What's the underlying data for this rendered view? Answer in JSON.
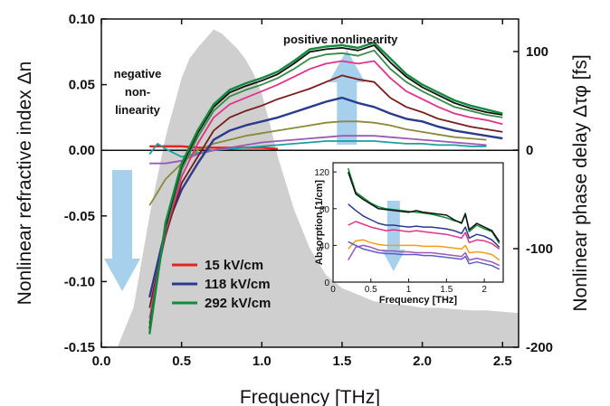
{
  "chart_data": [
    {
      "type": "line",
      "title": "",
      "xlabel": "Frequency [THz]",
      "ylabel": "Nonlinear refractive index Δn",
      "y2label": "Nonlinear phase delay Δτφ  [fs]",
      "xlim": [
        0.0,
        2.6
      ],
      "ylim": [
        -0.15,
        0.1
      ],
      "y2lim": [
        -200,
        133
      ],
      "xticks": [
        "0.0",
        "0.5",
        "1.0",
        "1.5",
        "2.0",
        "2.5"
      ],
      "yticks": [
        "-0.15",
        "-0.10",
        "-0.05",
        "0.00",
        "0.05",
        "0.10"
      ],
      "y2ticks": [
        "-200",
        "-100",
        "0",
        "100"
      ],
      "grid": false,
      "legend": {
        "position": "bottom-left",
        "entries": [
          {
            "label": "15 kV/cm",
            "color": "#e52321"
          },
          {
            "label": "118 kV/cm",
            "color": "#2b3a8c"
          },
          {
            "label": "292 kV/cm",
            "color": "#148a3c"
          }
        ]
      },
      "annotations": {
        "positive": "positive nonlinearity",
        "negative": [
          "negative",
          "non-",
          "linearity"
        ]
      },
      "arrow_color": "#9ccbea",
      "spectrum_fill": "#cfcfcf",
      "spectrum": {
        "x": [
          0.0,
          0.1,
          0.2,
          0.3,
          0.4,
          0.5,
          0.55,
          0.6,
          0.65,
          0.7,
          0.75,
          0.8,
          0.85,
          0.9,
          0.95,
          1.0,
          1.05,
          1.1,
          1.2,
          1.3,
          1.4,
          1.5,
          1.6,
          1.7,
          1.8,
          1.9,
          2.0,
          2.1,
          2.2,
          2.3,
          2.4,
          2.5,
          2.6
        ],
        "y": [
          -0.25,
          -0.21,
          -0.12,
          -0.05,
          0.01,
          0.055,
          0.07,
          0.078,
          0.085,
          0.092,
          0.089,
          0.083,
          0.077,
          0.069,
          0.058,
          0.043,
          0.02,
          -0.005,
          -0.045,
          -0.075,
          -0.095,
          -0.105,
          -0.11,
          -0.115,
          -0.117,
          -0.118,
          -0.12,
          -0.12,
          -0.121,
          -0.122,
          -0.122,
          -0.123,
          -0.124
        ]
      },
      "series": [
        {
          "color": "#e52321",
          "x": [
            0.3,
            0.4,
            0.5,
            0.6,
            0.7,
            0.8,
            0.9,
            1.0,
            1.1
          ],
          "y": [
            0.003,
            0.003,
            0.003,
            0.002,
            0.002,
            0.002,
            0.002,
            0.002,
            0.001
          ]
        },
        {
          "color": "#1a9fa0",
          "x": [
            0.3,
            0.35,
            0.4,
            0.5,
            0.6,
            0.7,
            0.8,
            0.9,
            1.0,
            1.1,
            1.2,
            1.3,
            1.4,
            1.5,
            1.6,
            1.7,
            1.8,
            1.9,
            2.0,
            2.1,
            2.2,
            2.3,
            2.4
          ],
          "y": [
            -0.003,
            0.005,
            0.001,
            -0.005,
            -0.002,
            0.0,
            0.001,
            0.002,
            0.003,
            0.004,
            0.005,
            0.006,
            0.007,
            0.007,
            0.007,
            0.007,
            0.006,
            0.005,
            0.005,
            0.004,
            0.004,
            0.003,
            0.003
          ]
        },
        {
          "color": "#9b59b6",
          "x": [
            0.3,
            0.4,
            0.5,
            0.6,
            0.7,
            0.8,
            0.9,
            1.0,
            1.1,
            1.2,
            1.3,
            1.4,
            1.5,
            1.6,
            1.7,
            1.8,
            1.9,
            2.0,
            2.1,
            2.2,
            2.3,
            2.4
          ],
          "y": [
            -0.01,
            -0.01,
            -0.008,
            -0.003,
            0.0,
            0.002,
            0.004,
            0.006,
            0.007,
            0.008,
            0.009,
            0.01,
            0.011,
            0.011,
            0.011,
            0.01,
            0.009,
            0.008,
            0.007,
            0.006,
            0.005,
            0.004
          ]
        },
        {
          "color": "#8a8a3a",
          "x": [
            0.3,
            0.4,
            0.5,
            0.6,
            0.7,
            0.8,
            0.9,
            1.0,
            1.1,
            1.2,
            1.3,
            1.4,
            1.5,
            1.6,
            1.7,
            1.8,
            1.9,
            2.0,
            2.1,
            2.2,
            2.3,
            2.4
          ],
          "y": [
            -0.042,
            -0.022,
            -0.01,
            0.0,
            0.005,
            0.008,
            0.011,
            0.013,
            0.015,
            0.017,
            0.019,
            0.021,
            0.022,
            0.022,
            0.021,
            0.019,
            0.016,
            0.014,
            0.012,
            0.01,
            0.009,
            0.008
          ]
        },
        {
          "color": "#2b3a8c",
          "x": [
            0.3,
            0.4,
            0.5,
            0.6,
            0.7,
            0.8,
            0.9,
            1.0,
            1.1,
            1.2,
            1.3,
            1.4,
            1.5,
            1.6,
            1.7,
            1.8,
            1.9,
            2.0,
            2.1,
            2.2,
            2.3,
            2.4,
            2.5
          ],
          "y": [
            -0.112,
            -0.06,
            -0.03,
            -0.01,
            0.008,
            0.015,
            0.019,
            0.022,
            0.025,
            0.029,
            0.033,
            0.037,
            0.04,
            0.036,
            0.033,
            0.028,
            0.024,
            0.022,
            0.018,
            0.015,
            0.013,
            0.011,
            0.009
          ]
        },
        {
          "color": "#7a1c1c",
          "x": [
            0.3,
            0.4,
            0.5,
            0.6,
            0.7,
            0.8,
            0.9,
            1.0,
            1.1,
            1.2,
            1.3,
            1.4,
            1.5,
            1.6,
            1.7,
            1.8,
            1.9,
            2.0,
            2.1,
            2.2,
            2.3,
            2.4,
            2.5
          ],
          "y": [
            -0.12,
            -0.065,
            -0.025,
            -0.005,
            0.015,
            0.025,
            0.03,
            0.034,
            0.039,
            0.043,
            0.047,
            0.052,
            0.057,
            0.054,
            0.052,
            0.04,
            0.033,
            0.029,
            0.024,
            0.021,
            0.018,
            0.016,
            0.014
          ]
        },
        {
          "color": "#e0338a",
          "x": [
            0.3,
            0.4,
            0.5,
            0.6,
            0.7,
            0.8,
            0.9,
            1.0,
            1.1,
            1.2,
            1.3,
            1.4,
            1.5,
            1.6,
            1.7,
            1.8,
            1.9,
            2.0,
            2.1,
            2.2,
            2.3,
            2.4,
            2.5
          ],
          "y": [
            -0.128,
            -0.062,
            -0.02,
            0.005,
            0.025,
            0.035,
            0.04,
            0.045,
            0.05,
            0.056,
            0.062,
            0.066,
            0.068,
            0.066,
            0.068,
            0.055,
            0.045,
            0.039,
            0.033,
            0.028,
            0.025,
            0.023,
            0.02
          ]
        },
        {
          "color": "#3a8a48",
          "x": [
            0.3,
            0.4,
            0.5,
            0.6,
            0.7,
            0.8,
            0.9,
            1.0,
            1.1,
            1.2,
            1.3,
            1.4,
            1.5,
            1.6,
            1.7,
            1.8,
            1.9,
            2.0,
            2.1,
            2.2,
            2.3,
            2.4,
            2.5
          ],
          "y": [
            -0.132,
            -0.06,
            -0.015,
            0.01,
            0.03,
            0.041,
            0.046,
            0.05,
            0.055,
            0.062,
            0.07,
            0.073,
            0.074,
            0.072,
            0.076,
            0.062,
            0.052,
            0.045,
            0.039,
            0.033,
            0.03,
            0.027,
            0.025
          ]
        },
        {
          "color": "#111111",
          "x": [
            0.3,
            0.4,
            0.5,
            0.6,
            0.7,
            0.8,
            0.9,
            1.0,
            1.1,
            1.2,
            1.3,
            1.4,
            1.5,
            1.6,
            1.7,
            1.8,
            1.9,
            2.0,
            2.1,
            2.2,
            2.3,
            2.4,
            2.5
          ],
          "y": [
            -0.136,
            -0.058,
            -0.012,
            0.013,
            0.033,
            0.044,
            0.049,
            0.053,
            0.058,
            0.066,
            0.075,
            0.077,
            0.078,
            0.076,
            0.08,
            0.067,
            0.056,
            0.048,
            0.042,
            0.036,
            0.032,
            0.029,
            0.027
          ]
        },
        {
          "color": "#148a3c",
          "x": [
            0.3,
            0.4,
            0.5,
            0.6,
            0.7,
            0.8,
            0.9,
            1.0,
            1.1,
            1.2,
            1.3,
            1.4,
            1.5,
            1.6,
            1.7,
            1.8,
            1.9,
            2.0,
            2.1,
            2.2,
            2.3,
            2.4,
            2.5
          ],
          "y": [
            -0.14,
            -0.055,
            -0.01,
            0.015,
            0.035,
            0.046,
            0.051,
            0.055,
            0.06,
            0.068,
            0.077,
            0.079,
            0.08,
            0.078,
            0.082,
            0.07,
            0.058,
            0.05,
            0.044,
            0.038,
            0.034,
            0.031,
            0.028
          ]
        }
      ]
    },
    {
      "type": "line",
      "title": "",
      "xlabel": "Frequency [THz]",
      "ylabel": "Absorption [1/cm]",
      "xlim": [
        0.0,
        2.25
      ],
      "ylim": [
        0,
        130
      ],
      "xticks": [
        "0",
        "0.5",
        "1",
        "1.5",
        "2"
      ],
      "yticks": [
        "0",
        "40",
        "80",
        "120"
      ],
      "series": [
        {
          "color": "#148a3c",
          "x": [
            0.2,
            0.3,
            0.4,
            0.5,
            0.6,
            0.7,
            0.8,
            0.9,
            1.0,
            1.1,
            1.2,
            1.3,
            1.4,
            1.5,
            1.6,
            1.7,
            1.75,
            1.8,
            1.9,
            2.0,
            2.1,
            2.2
          ],
          "y": [
            124,
            98,
            92,
            86,
            82,
            80,
            79,
            78,
            77,
            76,
            75,
            74,
            72,
            70,
            67,
            65,
            75,
            55,
            62,
            58,
            55,
            42
          ]
        },
        {
          "color": "#111111",
          "x": [
            0.2,
            0.3,
            0.4,
            0.5,
            0.6,
            0.7,
            0.8,
            0.9,
            1.0,
            1.1,
            1.2,
            1.3,
            1.4,
            1.5,
            1.6,
            1.7,
            1.75,
            1.8,
            1.9,
            2.0,
            2.1,
            2.2
          ],
          "y": [
            120,
            96,
            90,
            85,
            80,
            79,
            78,
            77,
            76,
            78,
            76,
            75,
            74,
            73,
            68,
            64,
            74,
            57,
            64,
            60,
            56,
            44
          ]
        },
        {
          "color": "#2b3a8c",
          "x": [
            0.2,
            0.3,
            0.4,
            0.5,
            0.6,
            0.7,
            0.8,
            0.9,
            1.0,
            1.1,
            1.2,
            1.3,
            1.4,
            1.5,
            1.6,
            1.7,
            1.75,
            1.8,
            1.9,
            2.0,
            2.1,
            2.2
          ],
          "y": [
            85,
            78,
            72,
            68,
            64,
            62,
            62,
            61,
            60,
            61,
            60,
            60,
            59,
            58,
            56,
            53,
            60,
            48,
            52,
            50,
            46,
            38
          ]
        },
        {
          "color": "#e0338a",
          "x": [
            0.2,
            0.3,
            0.4,
            0.5,
            0.6,
            0.7,
            0.8,
            0.9,
            1.0,
            1.1,
            1.2,
            1.3,
            1.4,
            1.5,
            1.6,
            1.7,
            1.75,
            1.8,
            1.9,
            2.0,
            2.1,
            2.2
          ],
          "y": [
            62,
            66,
            63,
            60,
            58,
            56,
            57,
            56,
            55,
            56,
            55,
            54,
            53,
            52,
            50,
            48,
            54,
            43,
            46,
            45,
            42,
            36
          ]
        },
        {
          "color": "#f39c1f",
          "x": [
            0.2,
            0.3,
            0.4,
            0.5,
            0.6,
            0.7,
            0.8,
            0.9,
            1.0,
            1.1,
            1.2,
            1.3,
            1.4,
            1.5,
            1.6,
            1.7,
            1.75,
            1.8,
            1.9,
            2.0,
            2.1,
            2.2
          ],
          "y": [
            36,
            45,
            46,
            43,
            41,
            40,
            40,
            40,
            40,
            40,
            39,
            39,
            39,
            38,
            37,
            36,
            40,
            32,
            33,
            32,
            30,
            24
          ]
        },
        {
          "color": "#9b59b6",
          "x": [
            0.2,
            0.3,
            0.4,
            0.5,
            0.6,
            0.7,
            0.8,
            0.9,
            1.0,
            1.1,
            1.2,
            1.3,
            1.4,
            1.5,
            1.6,
            1.7,
            1.75,
            1.8,
            1.9,
            2.0,
            2.1,
            2.2
          ],
          "y": [
            24,
            38,
            40,
            38,
            35,
            34,
            34,
            33,
            33,
            32,
            32,
            32,
            31,
            30,
            29,
            28,
            32,
            24,
            26,
            24,
            22,
            18
          ]
        },
        {
          "color": "#5d5dc4",
          "x": [
            0.2,
            0.3,
            0.4,
            0.5,
            0.6,
            0.7,
            0.8,
            0.9,
            1.0,
            1.1,
            1.2,
            1.3,
            1.4,
            1.5,
            1.6,
            1.7,
            1.75,
            1.8,
            1.9,
            2.0,
            2.1,
            2.2
          ],
          "y": [
            44,
            40,
            36,
            34,
            32,
            31,
            31,
            30,
            30,
            30,
            29,
            29,
            28,
            27,
            26,
            25,
            28,
            20,
            22,
            20,
            18,
            14
          ]
        }
      ]
    }
  ]
}
